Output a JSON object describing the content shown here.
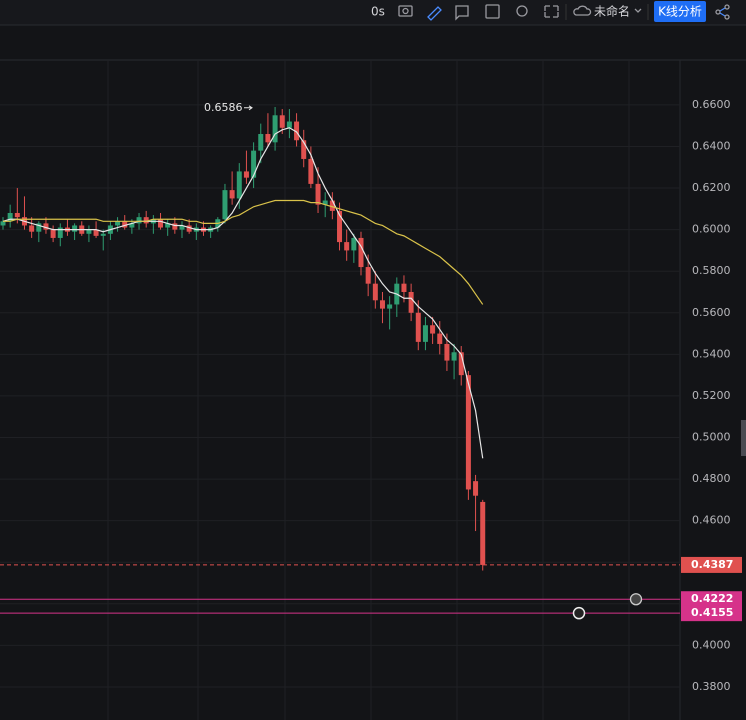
{
  "toolbar": {
    "timer": "0s",
    "layout_name": "未命名",
    "analysis_button": "K线分析"
  },
  "chart_data": {
    "type": "candlestick",
    "up_color": "#2f9e72",
    "down_color": "#e0514f",
    "open": [
      0.602,
      0.604,
      0.608,
      0.606,
      0.602,
      0.599,
      0.603,
      0.6,
      0.596,
      0.601,
      0.599,
      0.602,
      0.598,
      0.6,
      0.597,
      0.598,
      0.602,
      0.604,
      0.601,
      0.603,
      0.606,
      0.603,
      0.605,
      0.601,
      0.603,
      0.6,
      0.602,
      0.599,
      0.601,
      0.599,
      0.601,
      0.605,
      0.619,
      0.615,
      0.628,
      0.625,
      0.638,
      0.646,
      0.642,
      0.655,
      0.649,
      0.652,
      0.643,
      0.634,
      0.622,
      0.612,
      0.614,
      0.609,
      0.594,
      0.59,
      0.596,
      0.582,
      0.574,
      0.566,
      0.562,
      0.564,
      0.574,
      0.57,
      0.56,
      0.546,
      0.554,
      0.55,
      0.545,
      0.537,
      0.541,
      0.53,
      0.479,
      0.469
    ],
    "high": [
      0.606,
      0.612,
      0.62,
      0.616,
      0.606,
      0.604,
      0.606,
      0.602,
      0.603,
      0.605,
      0.603,
      0.604,
      0.602,
      0.604,
      0.6,
      0.604,
      0.606,
      0.607,
      0.605,
      0.608,
      0.609,
      0.607,
      0.608,
      0.605,
      0.606,
      0.604,
      0.605,
      0.603,
      0.604,
      0.602,
      0.606,
      0.622,
      0.628,
      0.632,
      0.638,
      0.642,
      0.651,
      0.656,
      0.659,
      0.658,
      0.658,
      0.656,
      0.648,
      0.64,
      0.63,
      0.618,
      0.618,
      0.613,
      0.6,
      0.598,
      0.599,
      0.588,
      0.58,
      0.57,
      0.568,
      0.577,
      0.578,
      0.574,
      0.566,
      0.558,
      0.558,
      0.556,
      0.55,
      0.545,
      0.544,
      0.532,
      0.482,
      0.47
    ],
    "low": [
      0.6,
      0.601,
      0.603,
      0.6,
      0.596,
      0.594,
      0.598,
      0.594,
      0.592,
      0.597,
      0.595,
      0.597,
      0.594,
      0.596,
      0.59,
      0.595,
      0.599,
      0.6,
      0.598,
      0.6,
      0.601,
      0.598,
      0.6,
      0.597,
      0.598,
      0.596,
      0.598,
      0.595,
      0.597,
      0.596,
      0.599,
      0.603,
      0.612,
      0.61,
      0.622,
      0.62,
      0.632,
      0.64,
      0.638,
      0.646,
      0.644,
      0.64,
      0.63,
      0.62,
      0.608,
      0.606,
      0.605,
      0.59,
      0.585,
      0.584,
      0.578,
      0.568,
      0.562,
      0.555,
      0.552,
      0.558,
      0.565,
      0.556,
      0.542,
      0.542,
      0.545,
      0.54,
      0.532,
      0.528,
      0.525,
      0.47,
      0.455,
      0.436
    ],
    "close": [
      0.604,
      0.608,
      0.606,
      0.602,
      0.599,
      0.603,
      0.6,
      0.596,
      0.601,
      0.599,
      0.602,
      0.598,
      0.6,
      0.597,
      0.598,
      0.602,
      0.604,
      0.601,
      0.603,
      0.606,
      0.603,
      0.605,
      0.601,
      0.603,
      0.6,
      0.602,
      0.599,
      0.601,
      0.599,
      0.601,
      0.605,
      0.619,
      0.615,
      0.628,
      0.625,
      0.638,
      0.646,
      0.642,
      0.655,
      0.649,
      0.652,
      0.643,
      0.634,
      0.622,
      0.612,
      0.614,
      0.609,
      0.594,
      0.59,
      0.596,
      0.582,
      0.574,
      0.566,
      0.562,
      0.564,
      0.574,
      0.57,
      0.56,
      0.546,
      0.554,
      0.55,
      0.545,
      0.537,
      0.541,
      0.53,
      0.475,
      0.472,
      0.4387
    ],
    "lines": [
      {
        "color": "#e6e6e6",
        "values": [
          0.604,
          0.605,
          0.605,
          0.604,
          0.603,
          0.602,
          0.601,
          0.6,
          0.6,
          0.6,
          0.6,
          0.6,
          0.6,
          0.6,
          0.599,
          0.6,
          0.601,
          0.602,
          0.603,
          0.604,
          0.604,
          0.604,
          0.604,
          0.603,
          0.602,
          0.602,
          0.601,
          0.6,
          0.6,
          0.6,
          0.601,
          0.604,
          0.608,
          0.614,
          0.62,
          0.626,
          0.634,
          0.64,
          0.646,
          0.648,
          0.649,
          0.647,
          0.642,
          0.636,
          0.627,
          0.62,
          0.614,
          0.607,
          0.602,
          0.597,
          0.592,
          0.585,
          0.579,
          0.574,
          0.57,
          0.569,
          0.567,
          0.567,
          0.563,
          0.56,
          0.557,
          0.552,
          0.547,
          0.544,
          0.54,
          0.526,
          0.513,
          0.49
        ]
      },
      {
        "color": "#d9c24a",
        "values": [
          0.604,
          0.604,
          0.605,
          0.605,
          0.605,
          0.605,
          0.605,
          0.605,
          0.605,
          0.605,
          0.605,
          0.605,
          0.605,
          0.605,
          0.604,
          0.604,
          0.604,
          0.604,
          0.604,
          0.604,
          0.604,
          0.605,
          0.605,
          0.605,
          0.605,
          0.605,
          0.604,
          0.604,
          0.603,
          0.603,
          0.603,
          0.604,
          0.606,
          0.607,
          0.609,
          0.611,
          0.612,
          0.613,
          0.614,
          0.614,
          0.614,
          0.614,
          0.614,
          0.613,
          0.613,
          0.612,
          0.611,
          0.61,
          0.609,
          0.608,
          0.607,
          0.605,
          0.603,
          0.602,
          0.6,
          0.598,
          0.597,
          0.595,
          0.593,
          0.591,
          0.589,
          0.587,
          0.584,
          0.581,
          0.578,
          0.574,
          0.569,
          0.564
        ]
      }
    ],
    "peak_label": 0.6586,
    "price_lines": [
      {
        "value": 0.4387,
        "color": "#e0514f",
        "style": "dashed"
      },
      {
        "value": 0.4222,
        "color": "#d6338a",
        "style": "solid"
      },
      {
        "value": 0.4155,
        "color": "#d6338a",
        "style": "solid"
      }
    ],
    "ylim": [
      0.3641,
      0.6816
    ],
    "yticks": [
      {
        "value": 0.66,
        "label": "0.6600"
      },
      {
        "value": 0.64,
        "label": "0.6400"
      },
      {
        "value": 0.62,
        "label": "0.6200"
      },
      {
        "value": 0.6,
        "label": "0.6000"
      },
      {
        "value": 0.58,
        "label": "0.5800"
      },
      {
        "value": 0.56,
        "label": "0.5600"
      },
      {
        "value": 0.54,
        "label": "0.5400"
      },
      {
        "value": 0.52,
        "label": "0.5200"
      },
      {
        "value": 0.5,
        "label": "0.5000"
      },
      {
        "value": 0.48,
        "label": "0.4800"
      },
      {
        "value": 0.46,
        "label": "0.4600"
      },
      {
        "value": 0.44,
        "label": "0.4400"
      },
      {
        "value": 0.42,
        "label": "0.4200"
      },
      {
        "value": 0.4,
        "label": "0.4000"
      },
      {
        "value": 0.38,
        "label": "0.3800"
      }
    ],
    "grid": true
  }
}
